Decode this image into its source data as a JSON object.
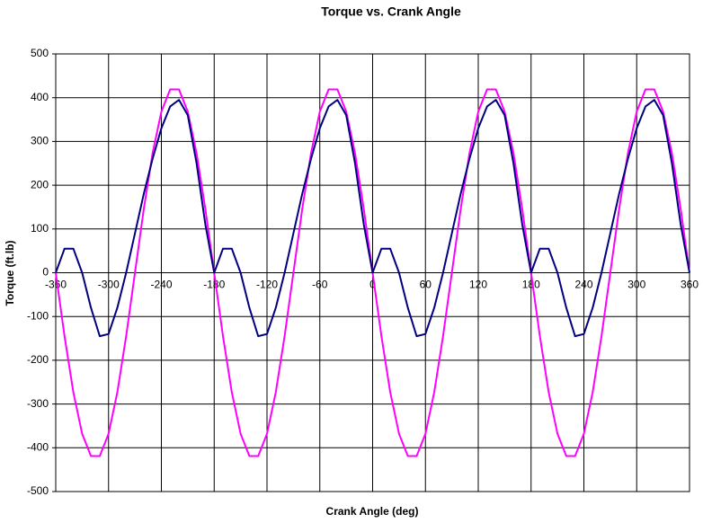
{
  "chart_data": {
    "type": "line",
    "title": "Torque vs. Crank Angle",
    "x_label": "Crank Angle (deg)",
    "y_label": "Torque (ft.lb)",
    "x": [
      -360,
      -350,
      -340,
      -330,
      -320,
      -310,
      -300,
      -290,
      -280,
      -270,
      -260,
      -250,
      -240,
      -230,
      -220,
      -210,
      -200,
      -190,
      -180,
      -170,
      -160,
      -150,
      -140,
      -130,
      -120,
      -110,
      -100,
      -90,
      -80,
      -70,
      -60,
      -50,
      -40,
      -30,
      -20,
      -10,
      0,
      10,
      20,
      30,
      40,
      50,
      60,
      70,
      80,
      90,
      100,
      110,
      120,
      130,
      140,
      150,
      160,
      170,
      180,
      190,
      200,
      210,
      220,
      230,
      240,
      250,
      260,
      270,
      280,
      290,
      300,
      310,
      320,
      330,
      340,
      350,
      360
    ],
    "series": [
      {
        "color": "#ff00ff",
        "values": [
          0,
          -145,
          -273,
          -368,
          -419,
          -419,
          -368,
          -273,
          -145,
          0,
          145,
          273,
          368,
          419,
          419,
          368,
          273,
          145,
          0,
          -145,
          -273,
          -368,
          -419,
          -419,
          -368,
          -273,
          -145,
          0,
          145,
          273,
          368,
          419,
          419,
          368,
          273,
          145,
          0,
          -145,
          -273,
          -368,
          -419,
          -419,
          -368,
          -273,
          -145,
          0,
          145,
          273,
          368,
          419,
          419,
          368,
          273,
          145,
          0,
          -145,
          -273,
          -368,
          -419,
          -419,
          -368,
          -273,
          -145,
          0,
          145,
          273,
          368,
          419,
          419,
          368,
          273,
          145,
          0
        ]
      },
      {
        "color": "#000080",
        "values": [
          0,
          55,
          55,
          0,
          -80,
          -145,
          -140,
          -80,
          0,
          90,
          180,
          260,
          330,
          380,
          395,
          360,
          250,
          110,
          0,
          55,
          55,
          0,
          -80,
          -145,
          -140,
          -80,
          0,
          90,
          180,
          260,
          330,
          380,
          395,
          360,
          250,
          110,
          0,
          55,
          55,
          0,
          -80,
          -145,
          -140,
          -80,
          0,
          90,
          180,
          260,
          330,
          380,
          395,
          360,
          250,
          110,
          0,
          55,
          55,
          0,
          -80,
          -145,
          -140,
          -80,
          0,
          90,
          180,
          260,
          330,
          380,
          395,
          360,
          250,
          110,
          0
        ]
      }
    ],
    "xlim": [
      -360,
      360
    ],
    "xticks": [
      -360,
      -300,
      -240,
      -180,
      -120,
      -60,
      0,
      60,
      120,
      180,
      240,
      300,
      360
    ],
    "ylim": [
      -500,
      500
    ],
    "yticks": [
      -500,
      -400,
      -300,
      -200,
      -100,
      0,
      100,
      200,
      300,
      400,
      500
    ],
    "grid": true
  }
}
